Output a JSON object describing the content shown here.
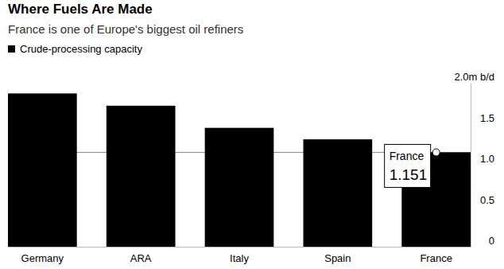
{
  "chart_data": {
    "type": "bar",
    "title": "Where Fuels Are Made",
    "subtitle": "France is one of Europe's biggest oil refiners",
    "categories": [
      "Germany",
      "ARA",
      "Italy",
      "Spain",
      "France"
    ],
    "series": [
      {
        "name": "Crude-processing capacity",
        "color": "#000000",
        "values": [
          1.87,
          1.72,
          1.45,
          1.31,
          1.151
        ]
      }
    ],
    "ylim": [
      0,
      2
    ],
    "yticks": [
      0,
      0.5,
      {
        "value": 1,
        "label": "1.0"
      },
      1.5,
      {
        "value": 2,
        "label": "2.0m b/d"
      }
    ],
    "grid": false,
    "legend": "top-left",
    "annotations": [
      {
        "text": "France",
        "value": 1.151
      }
    ]
  }
}
